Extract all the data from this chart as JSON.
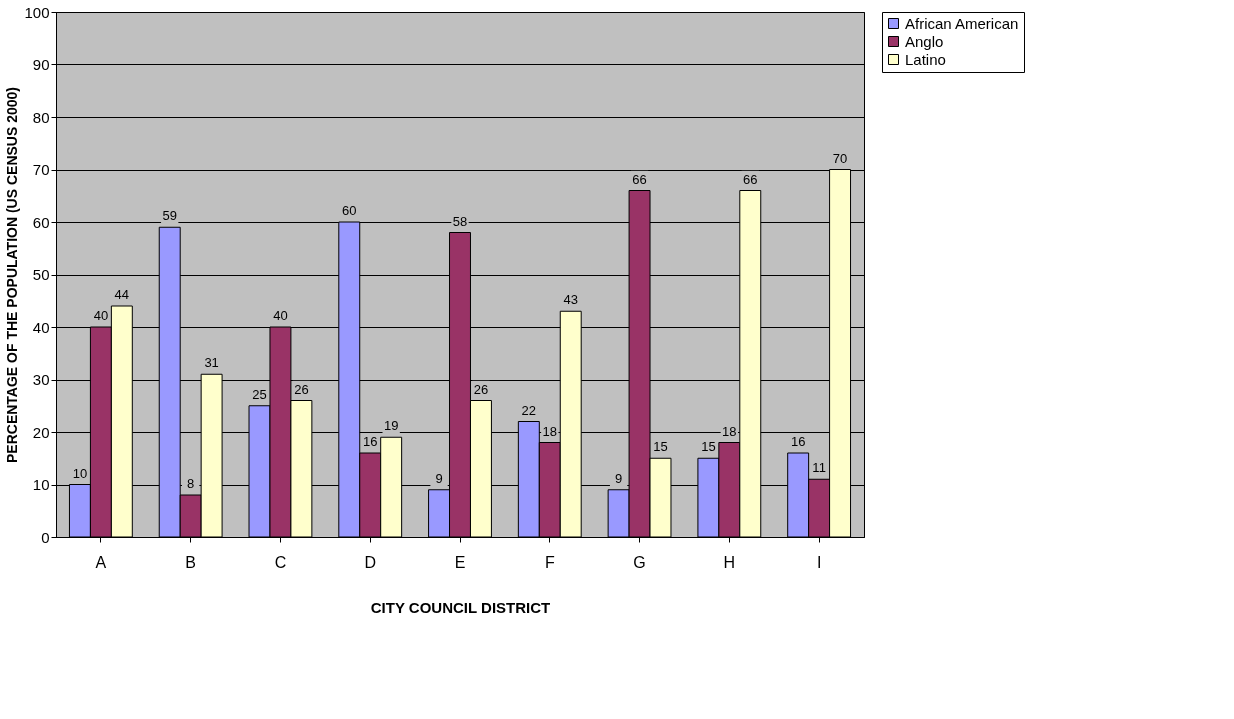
{
  "chart_data": {
    "type": "bar",
    "xlabel": "CITY COUNCIL DISTRICT",
    "ylabel": "PERCENTAGE OF THE POPULATION (US CENSUS 2000)",
    "categories": [
      "A",
      "B",
      "C",
      "D",
      "E",
      "F",
      "G",
      "H",
      "I"
    ],
    "series": [
      {
        "name": "African American",
        "color": "#9999ff",
        "values": [
          10,
          59,
          25,
          60,
          9,
          22,
          9,
          15,
          16
        ]
      },
      {
        "name": "Anglo",
        "color": "#993366",
        "values": [
          40,
          8,
          40,
          16,
          58,
          18,
          66,
          18,
          11
        ]
      },
      {
        "name": "Latino",
        "color": "#ffffcc",
        "values": [
          44,
          31,
          26,
          19,
          26,
          43,
          15,
          66,
          70
        ]
      }
    ],
    "ylim": [
      0,
      100
    ],
    "yticks": [
      0,
      10,
      20,
      30,
      40,
      50,
      60,
      70,
      80,
      90,
      100
    ],
    "grid": "y",
    "legend": "right",
    "data_labels": true
  }
}
